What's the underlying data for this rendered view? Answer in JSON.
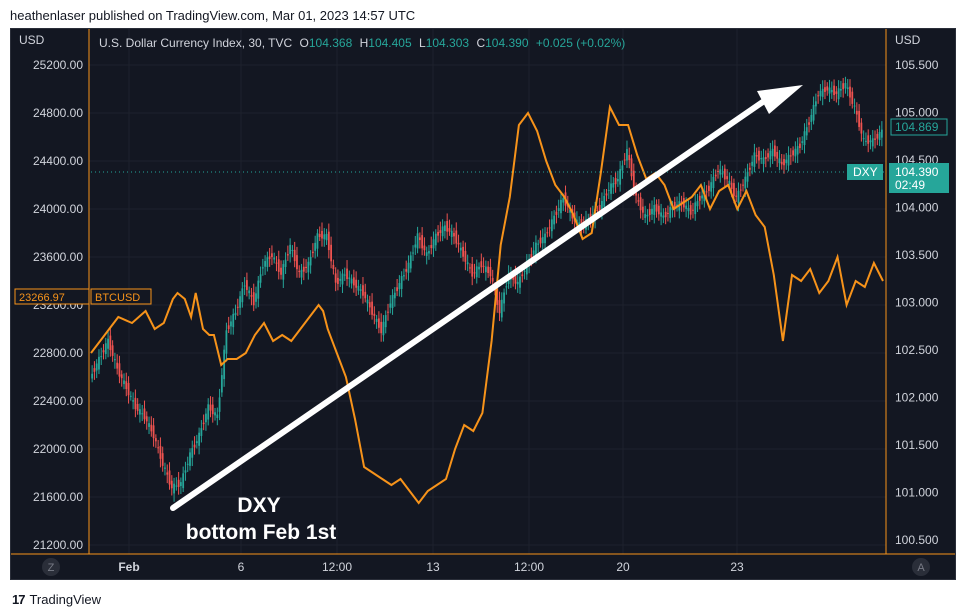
{
  "header": {
    "publisher": "heathenlaser published on TradingView.com, Mar 01, 2023 14:57 UTC"
  },
  "legend": {
    "currency_left": "USD",
    "currency_right": "USD",
    "symbol": "U.S. Dollar Currency Index, 30, TVC",
    "o_label": "O",
    "o_value": "104.368",
    "h_label": "H",
    "h_value": "104.405",
    "l_label": "L",
    "l_value": "104.303",
    "c_label": "C",
    "c_value": "104.390",
    "change": "+0.025 (+0.02%)"
  },
  "markers": {
    "btc_price": "23266.97",
    "btc_symbol": "BTCUSD",
    "dxy_symbol": "DXY",
    "dxy_price": "104.390",
    "dxy_countdown": "02:49",
    "right_highlight": "104.869"
  },
  "annotation": {
    "line1": "DXY",
    "line2": "bottom Feb 1st"
  },
  "axis_buttons": {
    "left": "Z",
    "right": "A"
  },
  "footer": {
    "brand": "TradingView",
    "logo": "17"
  },
  "colors": {
    "background": "#131722",
    "btc_line": "#f7931a",
    "up": "#26a69a",
    "down": "#ef5350",
    "dxy_tag": "#26a69a",
    "arrow": "#ffffff"
  },
  "chart_data": {
    "type": "line",
    "left_axis": {
      "ticks": [
        "25200.00",
        "24800.00",
        "24400.00",
        "24000.00",
        "23600.00",
        "23200.00",
        "22800.00",
        "22400.00",
        "22000.00",
        "21600.00",
        "21200.00"
      ]
    },
    "right_axis": {
      "ticks": [
        "105.500",
        "105.000",
        "104.500",
        "104.000",
        "103.500",
        "103.000",
        "102.500",
        "102.000",
        "101.500",
        "101.000",
        "100.500"
      ]
    },
    "x_ticks": [
      "Feb",
      "6",
      "12:00",
      "13",
      "12:00",
      "20",
      "23"
    ],
    "series": [
      {
        "name": "BTCUSD",
        "points": [
          [
            0,
            22800
          ],
          [
            1.5,
            22950
          ],
          [
            3,
            23100
          ],
          [
            4.5,
            23050
          ],
          [
            6,
            23150
          ],
          [
            7,
            23000
          ],
          [
            8,
            23050
          ],
          [
            9,
            23250
          ],
          [
            9.5,
            23300
          ],
          [
            10.3,
            23250
          ],
          [
            11,
            23100
          ],
          [
            11.5,
            23300
          ],
          [
            12.3,
            23000
          ],
          [
            13,
            22950
          ],
          [
            13.5,
            22950
          ],
          [
            14.3,
            22700
          ],
          [
            15,
            22750
          ],
          [
            16,
            22750
          ],
          [
            17,
            22800
          ],
          [
            18,
            22950
          ],
          [
            19,
            23050
          ],
          [
            20,
            22900
          ],
          [
            21,
            22950
          ],
          [
            22,
            22900
          ],
          [
            23,
            23000
          ],
          [
            24,
            23100
          ],
          [
            25,
            23200
          ],
          [
            25.5,
            23150
          ],
          [
            26,
            23000
          ],
          [
            27,
            22800
          ],
          [
            28,
            22600
          ],
          [
            29,
            22250
          ],
          [
            30,
            21850
          ],
          [
            31,
            21800
          ],
          [
            32,
            21750
          ],
          [
            33,
            21700
          ],
          [
            34,
            21750
          ],
          [
            35,
            21650
          ],
          [
            36,
            21550
          ],
          [
            37,
            21650
          ],
          [
            38,
            21700
          ],
          [
            39,
            21750
          ],
          [
            40,
            22000
          ],
          [
            41,
            22200
          ],
          [
            42,
            22150
          ],
          [
            43,
            22300
          ],
          [
            44,
            22900
          ],
          [
            45,
            23700
          ],
          [
            46,
            24100
          ],
          [
            47,
            24700
          ],
          [
            48,
            24800
          ],
          [
            49,
            24650
          ],
          [
            50,
            24400
          ],
          [
            51,
            24200
          ],
          [
            52,
            24100
          ],
          [
            53,
            23950
          ],
          [
            54,
            23750
          ],
          [
            55,
            23800
          ],
          [
            56,
            24300
          ],
          [
            57,
            24850
          ],
          [
            58,
            24700
          ],
          [
            59,
            24700
          ],
          [
            60,
            24450
          ],
          [
            61,
            24250
          ],
          [
            62,
            24300
          ],
          [
            63,
            24200
          ],
          [
            64,
            24000
          ],
          [
            65,
            24050
          ],
          [
            66,
            24100
          ],
          [
            67,
            24200
          ],
          [
            68,
            24000
          ],
          [
            69,
            24150
          ],
          [
            70,
            24200
          ],
          [
            71,
            24000
          ],
          [
            72,
            24150
          ],
          [
            73,
            23950
          ],
          [
            74,
            23850
          ],
          [
            75,
            23450
          ],
          [
            76,
            22900
          ],
          [
            77,
            23450
          ],
          [
            78,
            23400
          ],
          [
            79,
            23500
          ],
          [
            80,
            23300
          ],
          [
            81,
            23400
          ],
          [
            82,
            23600
          ],
          [
            83,
            23200
          ],
          [
            84,
            23400
          ],
          [
            85,
            23350
          ],
          [
            86,
            23550
          ],
          [
            87,
            23400
          ]
        ]
      },
      {
        "name": "DXY",
        "points": [
          [
            0,
            102.2
          ],
          [
            1,
            102.4
          ],
          [
            2,
            102.6
          ],
          [
            3,
            102.3
          ],
          [
            4,
            102.1
          ],
          [
            5,
            101.9
          ],
          [
            6,
            101.8
          ],
          [
            7,
            101.6
          ],
          [
            8,
            101.3
          ],
          [
            9,
            101.05
          ],
          [
            10,
            101.1
          ],
          [
            11,
            101.4
          ],
          [
            12,
            101.6
          ],
          [
            13,
            101.9
          ],
          [
            14,
            101.8
          ],
          [
            15,
            102.7
          ],
          [
            16,
            102.9
          ],
          [
            17,
            103.2
          ],
          [
            18,
            103.0
          ],
          [
            19,
            103.4
          ],
          [
            20,
            103.5
          ],
          [
            21,
            103.3
          ],
          [
            22,
            103.6
          ],
          [
            23,
            103.3
          ],
          [
            24,
            103.4
          ],
          [
            25,
            103.7
          ],
          [
            26,
            103.7
          ],
          [
            27,
            103.2
          ],
          [
            28,
            103.3
          ],
          [
            29,
            103.2
          ],
          [
            30,
            103.1
          ],
          [
            31,
            102.9
          ],
          [
            32,
            102.7
          ],
          [
            33,
            103.0
          ],
          [
            34,
            103.2
          ],
          [
            35,
            103.4
          ],
          [
            36,
            103.7
          ],
          [
            37,
            103.5
          ],
          [
            38,
            103.7
          ],
          [
            39,
            103.8
          ],
          [
            40,
            103.7
          ],
          [
            41,
            103.5
          ],
          [
            42,
            103.3
          ],
          [
            43,
            103.4
          ],
          [
            44,
            103.3
          ],
          [
            45,
            102.9
          ],
          [
            46,
            103.3
          ],
          [
            47,
            103.2
          ],
          [
            48,
            103.4
          ],
          [
            49,
            103.6
          ],
          [
            50,
            103.7
          ],
          [
            51,
            103.9
          ],
          [
            52,
            104.1
          ],
          [
            53,
            103.9
          ],
          [
            54,
            103.8
          ],
          [
            55,
            103.9
          ],
          [
            56,
            104.0
          ],
          [
            57,
            104.2
          ],
          [
            58,
            104.3
          ],
          [
            59,
            104.6
          ],
          [
            60,
            104.1
          ],
          [
            61,
            103.9
          ],
          [
            62,
            104.0
          ],
          [
            63,
            103.9
          ],
          [
            64,
            104.0
          ],
          [
            65,
            104.05
          ],
          [
            66,
            103.95
          ],
          [
            67,
            104.1
          ],
          [
            68,
            104.2
          ],
          [
            69,
            104.4
          ],
          [
            70,
            104.3
          ],
          [
            71,
            104.1
          ],
          [
            72,
            104.3
          ],
          [
            73,
            104.55
          ],
          [
            74,
            104.5
          ],
          [
            75,
            104.6
          ],
          [
            76,
            104.45
          ],
          [
            77,
            104.55
          ],
          [
            78,
            104.65
          ],
          [
            79,
            104.9
          ],
          [
            80,
            105.2
          ],
          [
            81,
            105.25
          ],
          [
            82,
            105.2
          ],
          [
            83,
            105.3
          ],
          [
            84,
            105.05
          ],
          [
            85,
            104.7
          ],
          [
            86,
            104.7
          ],
          [
            87,
            104.8
          ]
        ]
      }
    ]
  }
}
